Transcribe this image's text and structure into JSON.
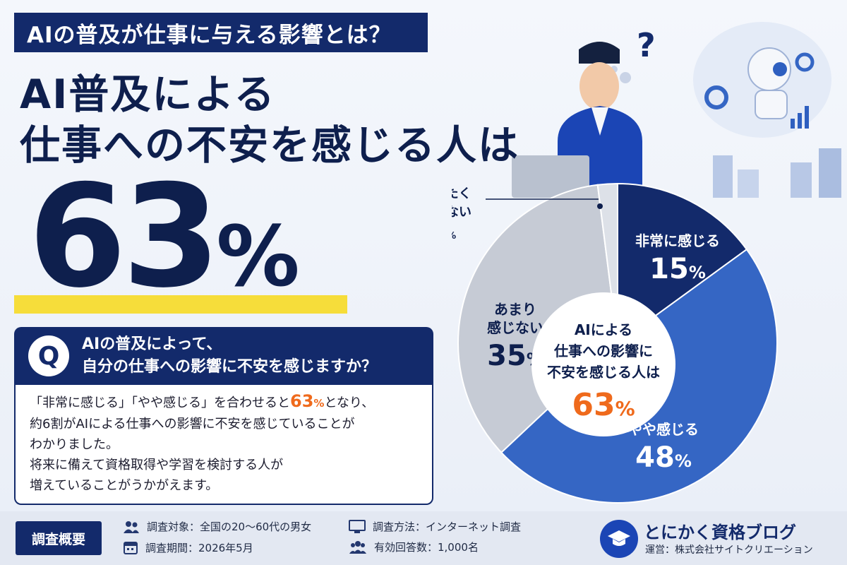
{
  "header": {
    "tag": "AIの普及が仕事に与える影響とは？",
    "headline_1": "AI普及による",
    "headline_2": "仕事への不安を感じる人は",
    "big_number": "63",
    "big_unit": "%"
  },
  "question": {
    "mark": "Q",
    "line_1": "AIの普及によって、",
    "line_2": "自分の仕事への影響に不安を感じますか？"
  },
  "answer": {
    "l1_a": "「非常に感じる」「やや感じる」を合わせると",
    "l1_num": "63",
    "l1_unit": "%",
    "l1_b": "となり、",
    "l2": "約6割がAIによる仕事への影響に不安を感じていることが",
    "l3": "わかりました。",
    "l4": "将来に備えて資格取得や学習を検討する人が",
    "l5": "増えていることがうかがえます。"
  },
  "chart_data": {
    "type": "pie",
    "categories": [
      "非常に感じる",
      "やや感じる",
      "あまり感じない",
      "まったく感じない"
    ],
    "label_lines": [
      [
        "非常に感じる"
      ],
      [
        "やや感じる"
      ],
      [
        "あまり",
        "感じない"
      ],
      [
        "まったく",
        "感じない"
      ]
    ],
    "values": [
      15,
      48,
      35,
      2
    ],
    "unit": "%",
    "colors": [
      "#132a6b",
      "#3566c4",
      "#c6cbd5",
      "#dde1e8"
    ],
    "center_lines": [
      "AIによる",
      "仕事への影響に",
      "不安を感じる人は"
    ],
    "center_value": "63",
    "center_unit": "%",
    "center_value_color": "#ef6a1c"
  },
  "footer": {
    "badge": "調査概要",
    "target": "調査対象：全国の20〜60代の男女",
    "period": "調査期間：2026年5月",
    "method": "調査方法：インターネット調査",
    "responses": "有効回答数：1,000名",
    "blog_name": "とにかく資格ブログ",
    "blog_operator": "運営：株式会社サイトクリエーション"
  }
}
